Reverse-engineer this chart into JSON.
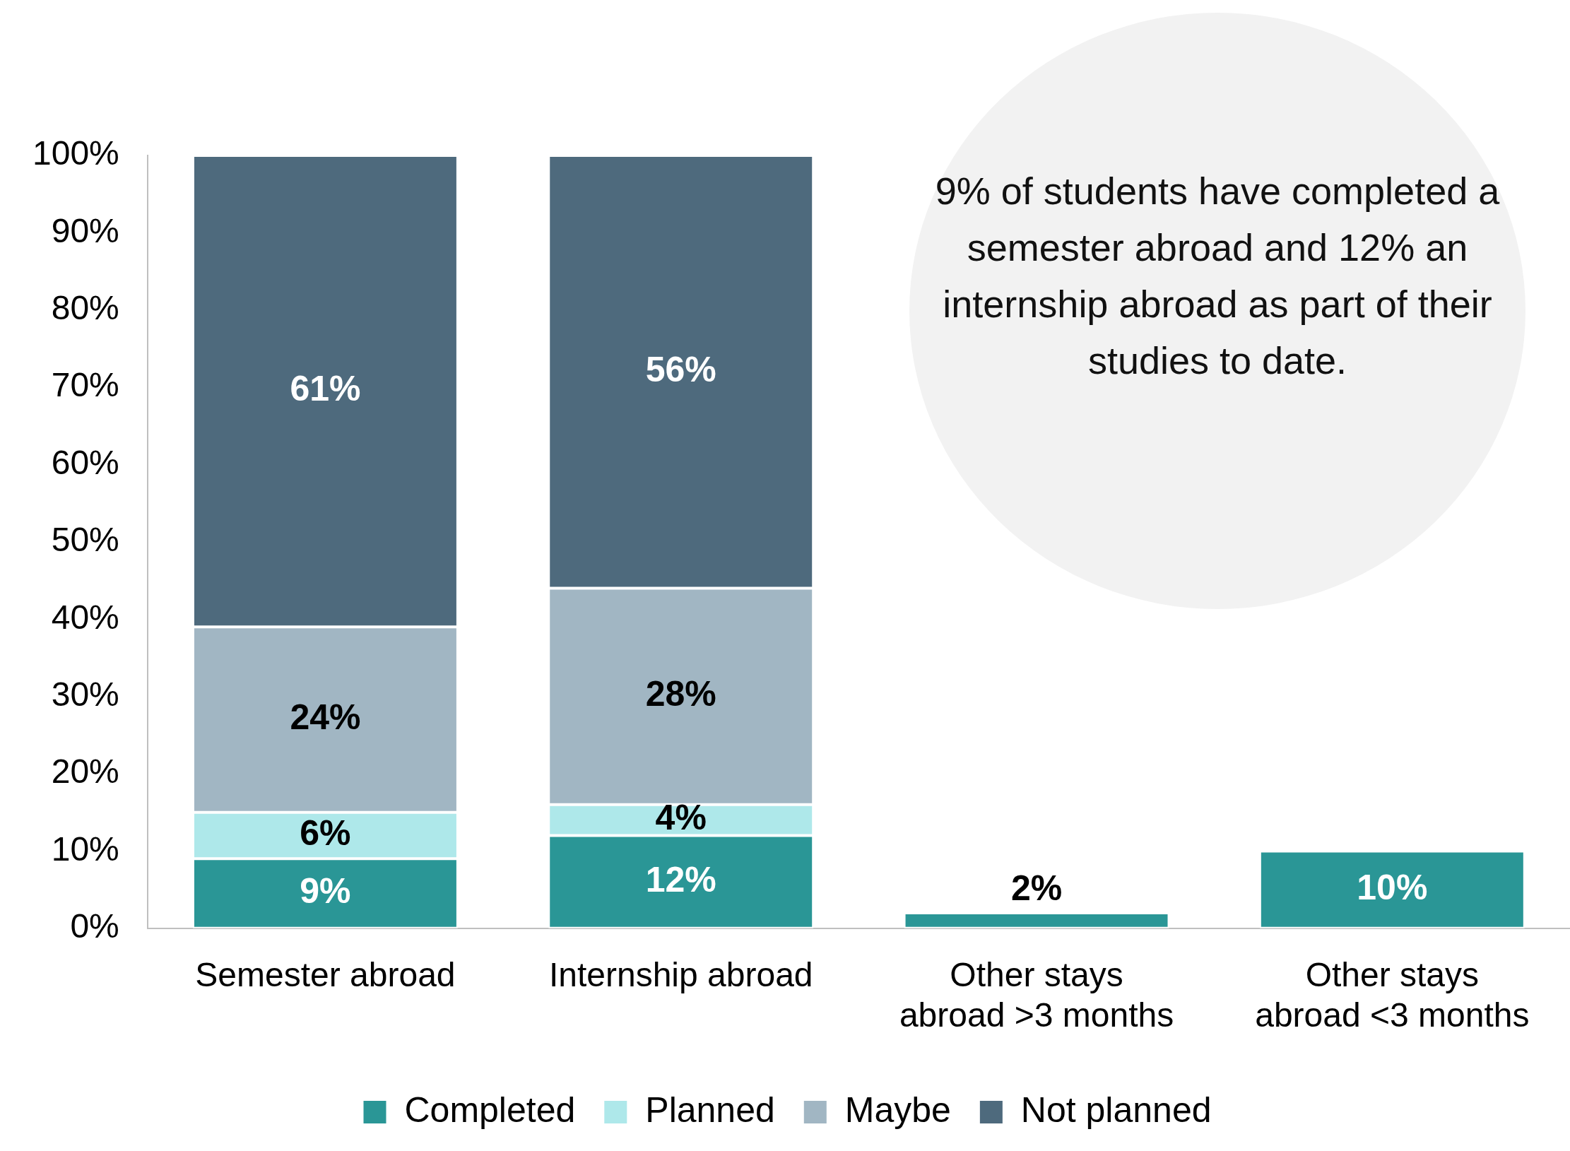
{
  "chart_data": {
    "type": "bar",
    "stacked": true,
    "categories": [
      "Semester abroad",
      "Internship abroad",
      "Other stays abroad >3 months",
      "Other stays abroad <3 months"
    ],
    "series": [
      {
        "name": "Completed",
        "color": "#2a9696",
        "values": [
          9,
          12,
          2,
          10
        ],
        "value_labels": [
          "9%",
          "12%",
          "2%",
          "10%"
        ]
      },
      {
        "name": "Planned",
        "color": "#aee8ea",
        "values": [
          6,
          4,
          null,
          null
        ],
        "value_labels": [
          "6%",
          "4%",
          null,
          null
        ]
      },
      {
        "name": "Maybe",
        "color": "#a1b6c3",
        "values": [
          24,
          28,
          null,
          null
        ],
        "value_labels": [
          "24%",
          "28%",
          null,
          null
        ]
      },
      {
        "name": "Not planned",
        "color": "#4e6a7d",
        "values": [
          61,
          56,
          null,
          null
        ],
        "value_labels": [
          "61%",
          "56%",
          null,
          null
        ]
      }
    ],
    "ylim": [
      0,
      100
    ],
    "yticks": [
      {
        "value": 0,
        "label": "0%"
      },
      {
        "value": 10,
        "label": "10%"
      },
      {
        "value": 20,
        "label": "20%"
      },
      {
        "value": 30,
        "label": "30%"
      },
      {
        "value": 40,
        "label": "40%"
      },
      {
        "value": 50,
        "label": "50%"
      },
      {
        "value": 60,
        "label": "60%"
      },
      {
        "value": 70,
        "label": "70%"
      },
      {
        "value": 80,
        "label": "80%"
      },
      {
        "value": 90,
        "label": "90%"
      },
      {
        "value": 100,
        "label": "100%"
      }
    ],
    "grid": false,
    "legend": "bottom",
    "annotations": [
      "9% of students have completed a semester abroad and 12% an internship abroad as part of their studies to date."
    ]
  }
}
